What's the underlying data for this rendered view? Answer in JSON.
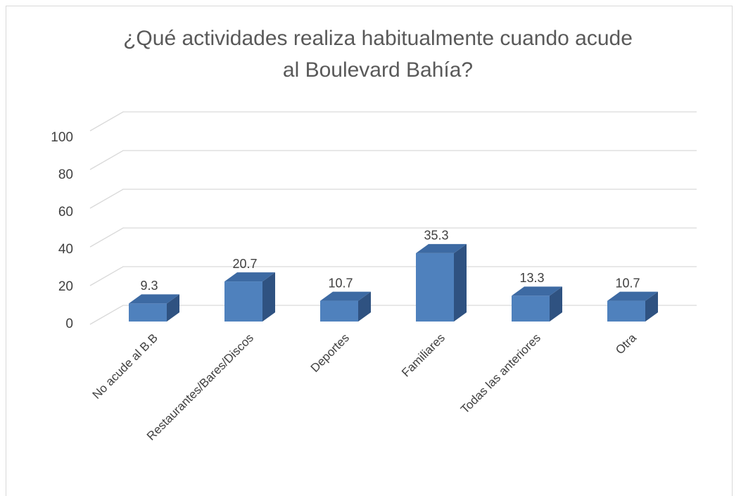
{
  "chart_data": {
    "type": "bar3d",
    "title": "¿Qué actividades realiza habitualmente cuando acude al Boulevard Bahía?",
    "categories": [
      "No acude al B.B",
      "Restaurantes/Bares/Discos",
      "Deportes",
      "Familiares",
      "Todas las anteriores",
      "Otra"
    ],
    "values": [
      9.3,
      20.7,
      10.7,
      35.3,
      13.3,
      10.7
    ],
    "color": "#4f81bd",
    "ylim": [
      0,
      100
    ],
    "yticks": [
      0,
      20,
      40,
      60,
      80,
      100
    ],
    "grid": true
  }
}
